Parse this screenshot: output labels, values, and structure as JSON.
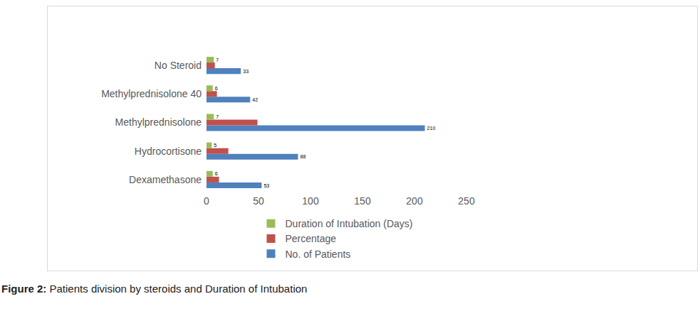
{
  "chart_data": {
    "type": "bar",
    "orientation": "horizontal",
    "title": "Figure 2: Patients division by steroids and Duration of Intubation",
    "categories": [
      "Dexamethasone",
      "Hydrocortisone",
      "Methylprednisolone",
      "Methylprednisolone 40",
      "No Steroid"
    ],
    "series": [
      {
        "name": "Duration of Intubation (Days)",
        "color": "#9bbb59",
        "values": [
          6,
          5,
          7,
          6,
          7
        ],
        "data_labels": true
      },
      {
        "name": "Percentage",
        "color": "#c0504d",
        "values": [
          12,
          21,
          49,
          10,
          8
        ],
        "data_labels": false
      },
      {
        "name": "No. of Patients",
        "color": "#4f81bd",
        "values": [
          53,
          88,
          210,
          42,
          33
        ],
        "data_labels": true
      }
    ],
    "xlim": [
      0,
      250
    ],
    "xticks": [
      0,
      50,
      100,
      150,
      200,
      250
    ],
    "grid": false,
    "legend": "bottom"
  }
}
